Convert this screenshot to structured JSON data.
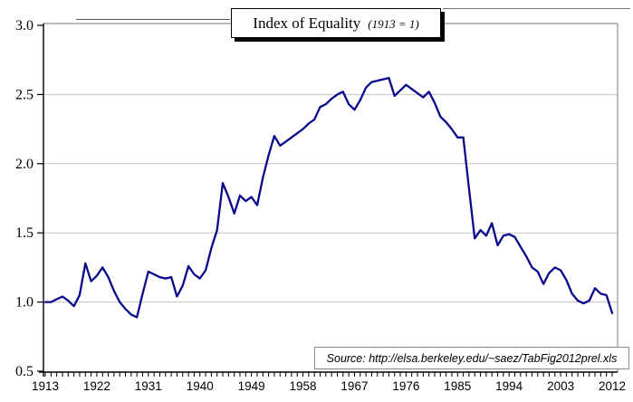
{
  "title": {
    "main": "Index of Equality",
    "note": "(1913 = 1)"
  },
  "source": {
    "text": "Source: http://elsa.berkeley.edu/~saez/TabFig2012prel.xls"
  },
  "style": {
    "line_color": "#08088c",
    "grid_color": "#c4c4c4",
    "border_color": "#8f8f8f",
    "axis_color": "#000000",
    "background": "#ffffff"
  },
  "axes": {
    "y_tick_labels": [
      "3.0",
      "2.5",
      "2.0",
      "1.5",
      "1.0",
      "0.5"
    ],
    "y_tick_values": [
      3.0,
      2.5,
      2.0,
      1.5,
      1.0,
      0.5
    ],
    "y_gridline_values": [
      2.5,
      2.0,
      1.5,
      1.0
    ],
    "x_tick_labels": [
      "1913",
      "1922",
      "1931",
      "1940",
      "1949",
      "1958",
      "1967",
      "1976",
      "1985",
      "1994",
      "2003",
      "2012"
    ],
    "x_minor_tick_every_year": true
  },
  "chart_data": {
    "type": "line",
    "title": "Index of Equality (1913 = 1)",
    "xlabel": "",
    "ylabel": "",
    "x_start": 1913,
    "x_end": 2012,
    "ylim": [
      0.5,
      3.0
    ],
    "xlim": [
      1913,
      2012
    ],
    "grid": "horizontal-major",
    "legend": "none",
    "series": [
      {
        "name": "Index of Equality (1913 = 1)",
        "values": [
          1.0,
          1.0,
          1.02,
          1.04,
          1.01,
          0.97,
          1.05,
          1.28,
          1.15,
          1.19,
          1.25,
          1.18,
          1.08,
          1.0,
          0.95,
          0.91,
          0.89,
          1.06,
          1.22,
          1.2,
          1.18,
          1.17,
          1.18,
          1.04,
          1.12,
          1.26,
          1.2,
          1.17,
          1.23,
          1.39,
          1.52,
          1.86,
          1.76,
          1.64,
          1.77,
          1.73,
          1.76,
          1.7,
          1.9,
          2.06,
          2.2,
          2.13,
          2.16,
          2.19,
          2.22,
          2.25,
          2.29,
          2.32,
          2.41,
          2.43,
          2.47,
          2.5,
          2.52,
          2.43,
          2.39,
          2.46,
          2.55,
          2.59,
          2.6,
          2.61,
          2.62,
          2.49,
          2.53,
          2.57,
          2.54,
          2.51,
          2.48,
          2.52,
          2.44,
          2.34,
          2.3,
          2.25,
          2.19,
          2.19,
          1.82,
          1.46,
          1.52,
          1.48,
          1.57,
          1.41,
          1.48,
          1.49,
          1.47,
          1.4,
          1.33,
          1.25,
          1.22,
          1.13,
          1.21,
          1.25,
          1.23,
          1.16,
          1.06,
          1.01,
          0.99,
          1.01,
          1.1,
          1.06,
          1.05,
          0.92
        ]
      }
    ]
  }
}
